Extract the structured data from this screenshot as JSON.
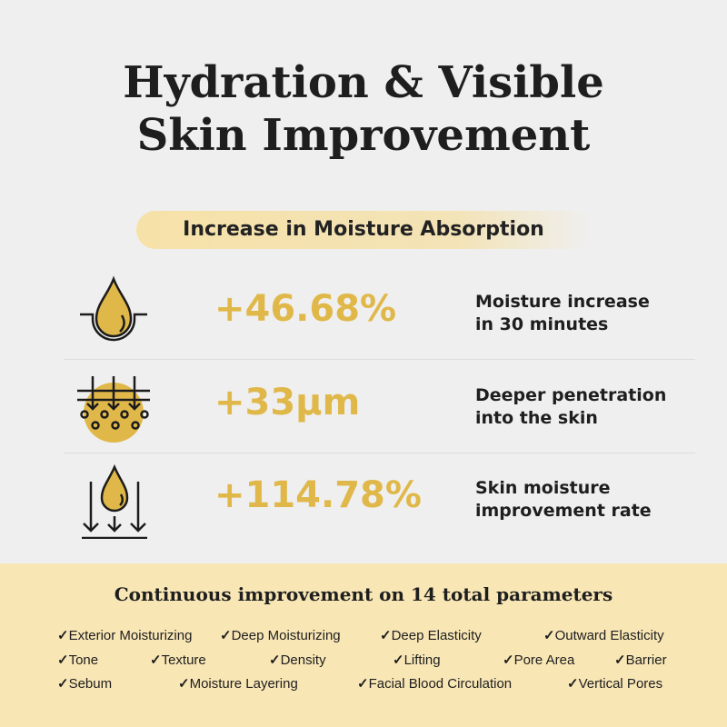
{
  "title_line1": "Hydration & Visible",
  "title_line2": "Skin Improvement",
  "section_pill": "Increase in Moisture Absorption",
  "stats": [
    {
      "icon": "water-drop-in-skin-icon",
      "value": "+46.68%",
      "desc_line1": "Moisture increase",
      "desc_line2": "in 30 minutes"
    },
    {
      "icon": "penetration-layers-icon",
      "value": "+33µm",
      "desc_line1": "Deeper penetration",
      "desc_line2": "into the skin"
    },
    {
      "icon": "drop-with-down-arrows-icon",
      "value": "+114.78%",
      "desc_line1": "Skin moisture",
      "desc_line2": "improvement rate"
    }
  ],
  "parameters": {
    "heading": "Continuous improvement on 14 total parameters",
    "check": "✓",
    "items": [
      "Exterior Moisturizing",
      "Deep Moisturizing",
      "Deep Elasticity",
      "Outward Elasticity",
      "Tone",
      "Texture",
      "Density",
      "Lifting",
      "Pore Area",
      "Barrier",
      "Sebum",
      "Moisture Layering",
      "Facial Blood Circulation",
      "Vertical Pores"
    ]
  },
  "colors": {
    "accent": "#e0b84a",
    "band": "#f8e6b5",
    "background": "#efefef"
  }
}
